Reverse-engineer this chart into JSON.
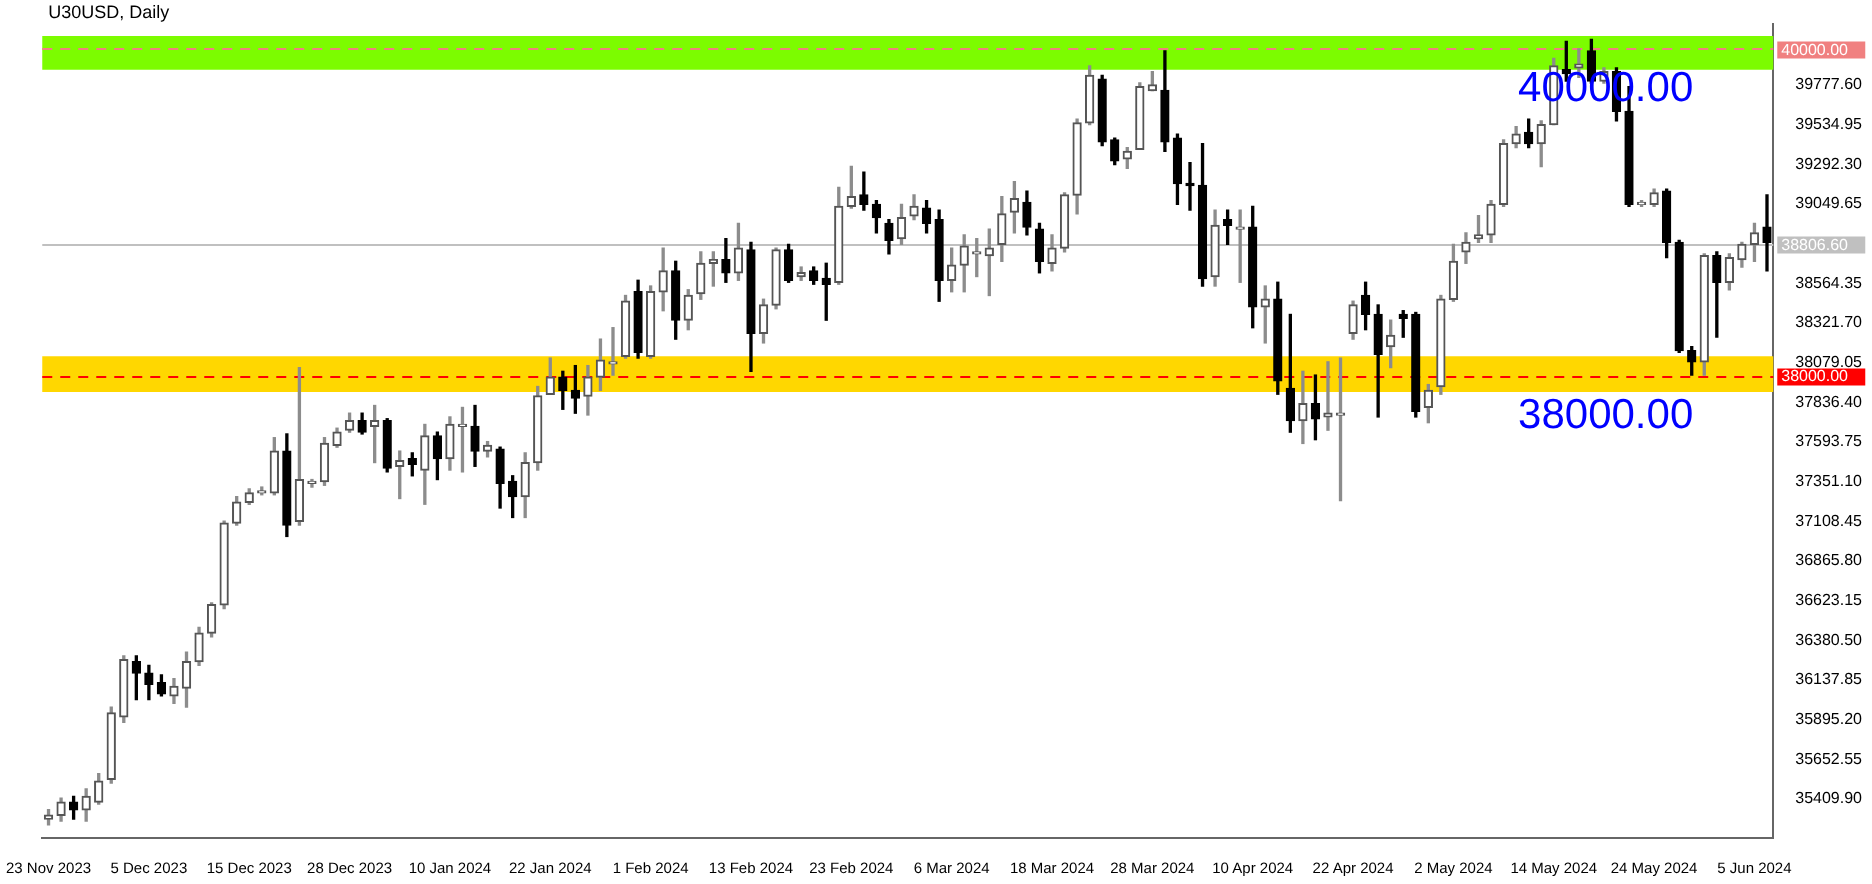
{
  "chart_data": {
    "type": "candlestick",
    "title": "U30USD, Daily",
    "categories": [
      "23 Nov 2023",
      null,
      null,
      null,
      null,
      null,
      null,
      null,
      "5 Dec 2023",
      null,
      null,
      null,
      null,
      null,
      null,
      null,
      "15 Dec 2023",
      null,
      null,
      null,
      null,
      null,
      null,
      null,
      "28 Dec 2023",
      null,
      null,
      null,
      null,
      null,
      null,
      null,
      "10 Jan 2024",
      null,
      null,
      null,
      null,
      null,
      null,
      null,
      "22 Jan 2024",
      null,
      null,
      null,
      null,
      null,
      null,
      null,
      "1 Feb 2024",
      null,
      null,
      null,
      null,
      null,
      null,
      null,
      "13 Feb 2024",
      null,
      null,
      null,
      null,
      null,
      null,
      null,
      "23 Feb 2024",
      null,
      null,
      null,
      null,
      null,
      null,
      null,
      "6 Mar 2024",
      null,
      null,
      null,
      null,
      null,
      null,
      null,
      "18 Mar 2024",
      null,
      null,
      null,
      null,
      null,
      null,
      null,
      "28 Mar 2024",
      null,
      null,
      null,
      null,
      null,
      null,
      null,
      "10 Apr 2024",
      null,
      null,
      null,
      null,
      null,
      null,
      null,
      "22 Apr 2024",
      null,
      null,
      null,
      null,
      null,
      null,
      null,
      "2 May 2024",
      null,
      null,
      null,
      null,
      null,
      null,
      null,
      "14 May 2024",
      null,
      null,
      null,
      null,
      null,
      null,
      null,
      "24 May 2024",
      null,
      null,
      null,
      null,
      null,
      null,
      null,
      "5 Jun 2024",
      null
    ],
    "ohlc": [
      [
        35285,
        35343,
        35251,
        35309
      ],
      [
        35309,
        35413,
        35274,
        35390
      ],
      [
        35390,
        35425,
        35285,
        35343
      ],
      [
        35343,
        35471,
        35274,
        35425
      ],
      [
        35390,
        35564,
        35378,
        35518
      ],
      [
        35529,
        35971,
        35506,
        35935
      ],
      [
        35912,
        36284,
        35877,
        36261
      ],
      [
        36249,
        36284,
        36017,
        36179
      ],
      [
        36179,
        36226,
        36017,
        36110
      ],
      [
        36121,
        36168,
        36040,
        36052
      ],
      [
        36040,
        36145,
        35994,
        36098
      ],
      [
        36087,
        36307,
        35971,
        36249
      ],
      [
        36249,
        36458,
        36226,
        36423
      ],
      [
        36423,
        36609,
        36400,
        36597
      ],
      [
        36597,
        37108,
        36574,
        37096
      ],
      [
        37096,
        37259,
        37085,
        37224
      ],
      [
        37224,
        37305,
        37212,
        37282
      ],
      [
        37282,
        37317,
        37270,
        37293
      ],
      [
        37282,
        37619,
        37270,
        37537
      ],
      [
        37537,
        37642,
        37015,
        37085
      ],
      [
        37108,
        38048,
        37085,
        37363
      ],
      [
        37340,
        37363,
        37317,
        37351
      ],
      [
        37351,
        37619,
        37328,
        37584
      ],
      [
        37572,
        37677,
        37561,
        37653
      ],
      [
        37665,
        37769,
        37653,
        37723
      ],
      [
        37723,
        37769,
        37642,
        37653
      ],
      [
        37688,
        37816,
        37467,
        37723
      ],
      [
        37723,
        37735,
        37410,
        37433
      ],
      [
        37444,
        37537,
        37247,
        37479
      ],
      [
        37491,
        37526,
        37386,
        37456
      ],
      [
        37421,
        37700,
        37212,
        37630
      ],
      [
        37630,
        37653,
        37363,
        37491
      ],
      [
        37491,
        37746,
        37421,
        37700
      ],
      [
        37688,
        37804,
        37410,
        37700
      ],
      [
        37688,
        37816,
        37444,
        37537
      ],
      [
        37537,
        37595,
        37502,
        37572
      ],
      [
        37549,
        37561,
        37189,
        37340
      ],
      [
        37351,
        37386,
        37131,
        37259
      ],
      [
        37259,
        37526,
        37131,
        37467
      ],
      [
        37467,
        37932,
        37421,
        37874
      ],
      [
        37885,
        38106,
        37885,
        37990
      ],
      [
        37990,
        38025,
        37793,
        37909
      ],
      [
        37909,
        38060,
        37769,
        37862
      ],
      [
        37874,
        38060,
        37758,
        37990
      ],
      [
        37990,
        38222,
        37909,
        38094
      ],
      [
        38071,
        38292,
        38002,
        38083
      ],
      [
        38117,
        38489,
        38106,
        38454
      ],
      [
        38512,
        38582,
        38106,
        38141
      ],
      [
        38117,
        38547,
        38106,
        38512
      ],
      [
        38512,
        38779,
        38396,
        38640
      ],
      [
        38640,
        38698,
        38222,
        38338
      ],
      [
        38338,
        38524,
        38280,
        38489
      ],
      [
        38500,
        38756,
        38466,
        38686
      ],
      [
        38686,
        38756,
        38547,
        38709
      ],
      [
        38709,
        38837,
        38570,
        38628
      ],
      [
        38628,
        38930,
        38582,
        38779
      ],
      [
        38768,
        38814,
        38025,
        38257
      ],
      [
        38257,
        38466,
        38199,
        38431
      ],
      [
        38431,
        38779,
        38408,
        38768
      ],
      [
        38768,
        38802,
        38570,
        38582
      ],
      [
        38605,
        38663,
        38582,
        38628
      ],
      [
        38640,
        38663,
        38558,
        38582
      ],
      [
        38593,
        38686,
        38338,
        38558
      ],
      [
        38570,
        39151,
        38558,
        39034
      ],
      [
        39034,
        39278,
        39023,
        39093
      ],
      [
        39104,
        39243,
        39011,
        39046
      ],
      [
        39046,
        39069,
        38872,
        38965
      ],
      [
        38930,
        38953,
        38744,
        38826
      ],
      [
        38837,
        39046,
        38802,
        38965
      ],
      [
        38977,
        39104,
        38953,
        39034
      ],
      [
        39023,
        39069,
        38872,
        38930
      ],
      [
        38953,
        39011,
        38454,
        38582
      ],
      [
        38582,
        38779,
        38512,
        38675
      ],
      [
        38675,
        38860,
        38512,
        38791
      ],
      [
        38744,
        38837,
        38605,
        38756
      ],
      [
        38733,
        38895,
        38489,
        38779
      ],
      [
        38802,
        39093,
        38698,
        38988
      ],
      [
        38999,
        39185,
        38872,
        39081
      ],
      [
        39058,
        39127,
        38860,
        38907
      ],
      [
        38895,
        38930,
        38628,
        38698
      ],
      [
        38686,
        38860,
        38640,
        38779
      ],
      [
        38779,
        39116,
        38756,
        39104
      ],
      [
        39104,
        39568,
        38988,
        39545
      ],
      [
        39545,
        39893,
        39534,
        39835
      ],
      [
        39812,
        39835,
        39406,
        39429
      ],
      [
        39441,
        39452,
        39290,
        39313
      ],
      [
        39325,
        39394,
        39267,
        39371
      ],
      [
        39383,
        39789,
        39383,
        39766
      ],
      [
        39743,
        39858,
        39743,
        39778
      ],
      [
        39743,
        39986,
        39371,
        39429
      ],
      [
        39452,
        39476,
        39046,
        39174
      ],
      [
        39174,
        39301,
        39011,
        39162
      ],
      [
        39162,
        39418,
        38547,
        38593
      ],
      [
        38605,
        39011,
        38547,
        38918
      ],
      [
        38953,
        39011,
        38802,
        38918
      ],
      [
        38895,
        39011,
        38570,
        38907
      ],
      [
        38907,
        39034,
        38292,
        38419
      ],
      [
        38419,
        38547,
        38199,
        38466
      ],
      [
        38466,
        38570,
        37885,
        37967
      ],
      [
        37920,
        38373,
        37653,
        37723
      ],
      [
        37723,
        38025,
        37584,
        37827
      ],
      [
        37827,
        38002,
        37607,
        37735
      ],
      [
        37746,
        38083,
        37665,
        37769
      ],
      [
        37758,
        38106,
        37235,
        37769
      ],
      [
        38257,
        38454,
        38222,
        38431
      ],
      [
        38489,
        38570,
        38280,
        38373
      ],
      [
        38373,
        38431,
        37746,
        38129
      ],
      [
        38176,
        38338,
        38048,
        38245
      ],
      [
        38373,
        38396,
        38234,
        38350
      ],
      [
        38373,
        38385,
        37746,
        37781
      ],
      [
        37804,
        37944,
        37711,
        37909
      ],
      [
        37932,
        38489,
        37885,
        38466
      ],
      [
        38466,
        38802,
        38454,
        38698
      ],
      [
        38756,
        38872,
        38686,
        38814
      ],
      [
        38837,
        38977,
        38814,
        38860
      ],
      [
        38860,
        39069,
        38814,
        39046
      ],
      [
        39046,
        39441,
        39034,
        39418
      ],
      [
        39418,
        39522,
        39394,
        39476
      ],
      [
        39487,
        39568,
        39394,
        39418
      ],
      [
        39418,
        39557,
        39278,
        39534
      ],
      [
        39534,
        39940,
        39534,
        39893
      ],
      [
        39870,
        40044,
        39801,
        39847
      ],
      [
        39882,
        39998,
        39824,
        39905
      ],
      [
        39986,
        40056,
        39789,
        39801
      ],
      [
        39801,
        39882,
        39789,
        39858
      ],
      [
        39858,
        39882,
        39557,
        39615
      ],
      [
        39615,
        39766,
        39034,
        39046
      ],
      [
        39046,
        39069,
        39034,
        39058
      ],
      [
        39046,
        39139,
        39034,
        39116
      ],
      [
        39127,
        39139,
        38721,
        38814
      ],
      [
        38814,
        38826,
        38141,
        38152
      ],
      [
        38152,
        38176,
        38002,
        38083
      ],
      [
        38083,
        38744,
        38002,
        38733
      ],
      [
        38733,
        38756,
        38234,
        38570
      ],
      [
        38570,
        38744,
        38524,
        38721
      ],
      [
        38709,
        38814,
        38663,
        38802
      ],
      [
        38802,
        38930,
        38698,
        38872
      ],
      [
        38907,
        39104,
        38640,
        38814
      ]
    ],
    "ylim": [
      35170,
      40150
    ],
    "yticks": [
      {
        "value": 35409.9,
        "label": "35409.90"
      },
      {
        "value": 35652.55,
        "label": "35652.55"
      },
      {
        "value": 35895.2,
        "label": "35895.20"
      },
      {
        "value": 36137.85,
        "label": "36137.85"
      },
      {
        "value": 36380.5,
        "label": "36380.50"
      },
      {
        "value": 36623.15,
        "label": "36623.15"
      },
      {
        "value": 36865.8,
        "label": "36865.80"
      },
      {
        "value": 37108.45,
        "label": "37108.45"
      },
      {
        "value": 37351.1,
        "label": "37351.10"
      },
      {
        "value": 37593.75,
        "label": "37593.75"
      },
      {
        "value": 37836.4,
        "label": "37836.40"
      },
      {
        "value": 38079.05,
        "label": "38079.05"
      },
      {
        "value": 38321.7,
        "label": "38321.70"
      },
      {
        "value": 38564.35,
        "label": "38564.35"
      },
      {
        "value": 39049.65,
        "label": "39049.65"
      },
      {
        "value": 39292.3,
        "label": "39292.30"
      },
      {
        "value": 39534.95,
        "label": "39534.95"
      },
      {
        "value": 39777.6,
        "label": "39777.60"
      }
    ],
    "bands": [
      {
        "axis": "y",
        "from": 39870,
        "to": 40076,
        "color": "#7cfc00"
      },
      {
        "axis": "y",
        "from": 37898,
        "to": 38118,
        "color": "#ffd700"
      }
    ],
    "ref_lines": [
      {
        "axis": "y",
        "value": 40000,
        "label": "40000.00",
        "color": "#f08080",
        "line_style": "dashed"
      },
      {
        "axis": "y",
        "value": 38000,
        "label": "38000.00",
        "color": "#ff0000",
        "line_style": "dashed"
      },
      {
        "axis": "y",
        "value": 38806.6,
        "label": "38806.60",
        "color": "#c0c0c0",
        "line_style": "solid"
      }
    ],
    "annotations": [
      {
        "text": "40000.00",
        "y": 40000
      },
      {
        "text": "38000.00",
        "y": 38000
      }
    ]
  }
}
